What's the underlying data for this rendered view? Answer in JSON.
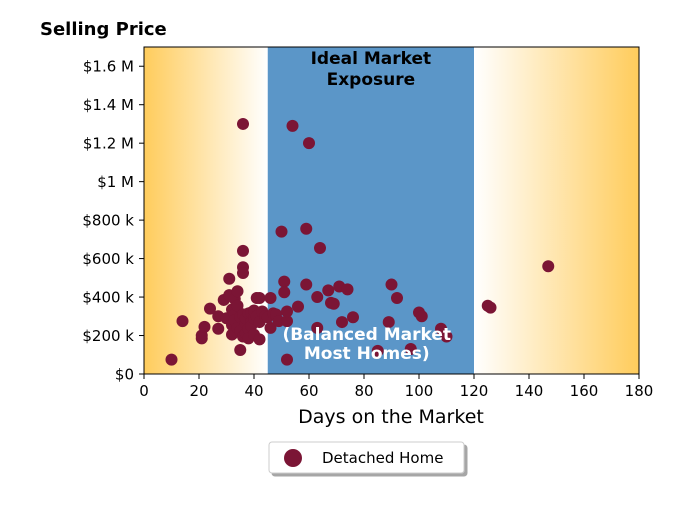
{
  "chart_data": {
    "type": "scatter",
    "title": "Selling Price",
    "xlabel": "Days on the Market",
    "ylabel": "",
    "xlim": [
      0,
      180
    ],
    "ylim": [
      0,
      1700000
    ],
    "x_ticks": [
      0,
      20,
      40,
      60,
      80,
      100,
      120,
      140,
      160,
      180
    ],
    "x_tick_labels": [
      "0",
      "20",
      "40",
      "60",
      "80",
      "100",
      "120",
      "140",
      "160",
      "180"
    ],
    "y_ticks": [
      0,
      200000,
      400000,
      600000,
      800000,
      1000000,
      1200000,
      1400000,
      1600000
    ],
    "y_tick_labels": [
      "$0",
      "$200 k",
      "$400 k",
      "$600 k",
      "$800 k",
      "$1 M",
      "$1.2 M",
      "$1.4 M",
      "$1.6 M"
    ],
    "grid": false,
    "legend_position": "bottom-center",
    "regions": [
      {
        "x_start": 0,
        "x_end": 45,
        "style": "gradient",
        "color": "#ffcc5c"
      },
      {
        "x_start": 45,
        "x_end": 120,
        "style": "solid",
        "color": "#5b96c8",
        "label_top": "Ideal Market\nExposure",
        "label_bottom": "(Balanced Market\nMost Homes)"
      },
      {
        "x_start": 120,
        "x_end": 180,
        "style": "gradient",
        "color": "#ffcc5c"
      }
    ],
    "series": [
      {
        "name": "Detached Home",
        "color": "#7b1535",
        "points": [
          [
            10,
            75000
          ],
          [
            14,
            275000
          ],
          [
            21,
            185000
          ],
          [
            21,
            200000
          ],
          [
            22,
            245000
          ],
          [
            24,
            340000
          ],
          [
            27,
            235000
          ],
          [
            27,
            300000
          ],
          [
            29,
            385000
          ],
          [
            30,
            290000
          ],
          [
            31,
            495000
          ],
          [
            31,
            410000
          ],
          [
            32,
            335000
          ],
          [
            32,
            205000
          ],
          [
            32,
            255000
          ],
          [
            33,
            310000
          ],
          [
            33,
            280000
          ],
          [
            33,
            390000
          ],
          [
            34,
            430000
          ],
          [
            34,
            355000
          ],
          [
            34,
            240000
          ],
          [
            35,
            295000
          ],
          [
            35,
            225000
          ],
          [
            35,
            125000
          ],
          [
            36,
            640000
          ],
          [
            36,
            555000
          ],
          [
            36,
            525000
          ],
          [
            36,
            1300000
          ],
          [
            36,
            195000
          ],
          [
            36,
            310000
          ],
          [
            37,
            265000
          ],
          [
            37,
            210000
          ],
          [
            37,
            290000
          ],
          [
            38,
            235000
          ],
          [
            38,
            315000
          ],
          [
            38,
            185000
          ],
          [
            39,
            270000
          ],
          [
            39,
            320000
          ],
          [
            39,
            250000
          ],
          [
            40,
            205000
          ],
          [
            40,
            290000
          ],
          [
            40,
            330000
          ],
          [
            41,
            395000
          ],
          [
            41,
            300000
          ],
          [
            42,
            395000
          ],
          [
            42,
            270000
          ],
          [
            42,
            180000
          ],
          [
            43,
            325000
          ],
          [
            44,
            300000
          ],
          [
            45,
            295000
          ],
          [
            46,
            240000
          ],
          [
            46,
            395000
          ],
          [
            47,
            315000
          ],
          [
            48,
            310000
          ],
          [
            49,
            275000
          ],
          [
            50,
            740000
          ],
          [
            51,
            480000
          ],
          [
            51,
            425000
          ],
          [
            52,
            75000
          ],
          [
            52,
            275000
          ],
          [
            52,
            325000
          ],
          [
            54,
            1290000
          ],
          [
            56,
            350000
          ],
          [
            59,
            755000
          ],
          [
            59,
            465000
          ],
          [
            60,
            1200000
          ],
          [
            63,
            400000
          ],
          [
            63,
            240000
          ],
          [
            64,
            655000
          ],
          [
            67,
            435000
          ],
          [
            68,
            370000
          ],
          [
            69,
            365000
          ],
          [
            71,
            455000
          ],
          [
            72,
            270000
          ],
          [
            74,
            440000
          ],
          [
            76,
            295000
          ],
          [
            85,
            120000
          ],
          [
            89,
            270000
          ],
          [
            90,
            465000
          ],
          [
            92,
            395000
          ],
          [
            97,
            130000
          ],
          [
            100,
            320000
          ],
          [
            101,
            300000
          ],
          [
            108,
            235000
          ],
          [
            110,
            195000
          ],
          [
            125,
            355000
          ],
          [
            126,
            345000
          ],
          [
            147,
            560000
          ]
        ]
      }
    ]
  }
}
